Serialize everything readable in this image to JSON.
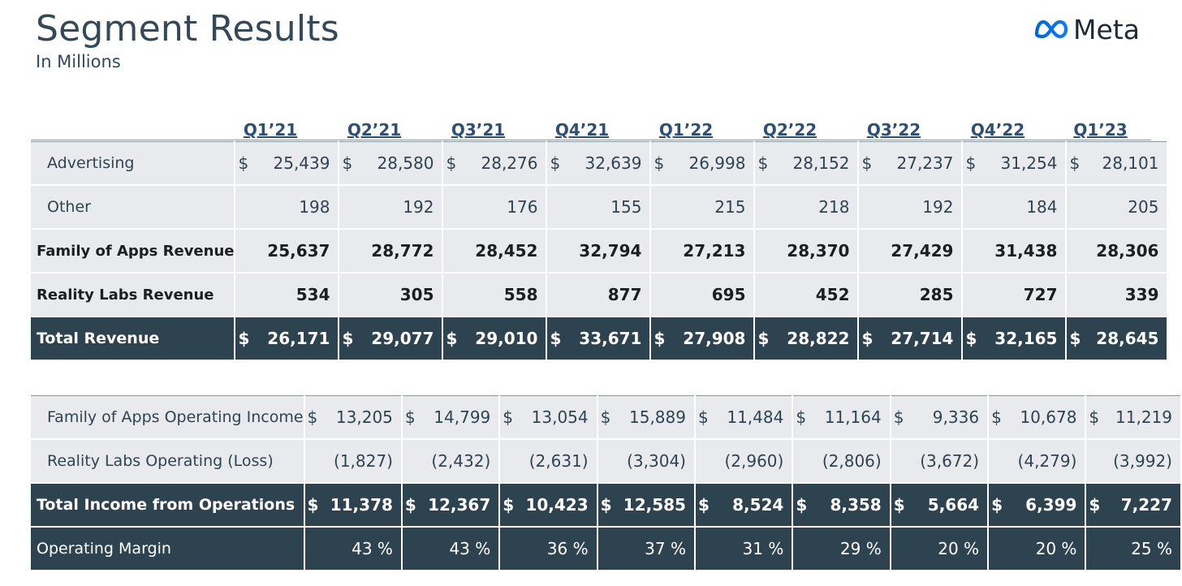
{
  "title": "Segment Results",
  "subtitle": "In Millions",
  "logo": {
    "text": "Meta",
    "icon": "meta-infinity-icon",
    "color": "#0866ff"
  },
  "quarters": [
    "Q1’21",
    "Q2’21",
    "Q3’21",
    "Q4’21",
    "Q1’22",
    "Q2’22",
    "Q3’22",
    "Q4’22",
    "Q1’23"
  ],
  "revenue_rows": [
    {
      "label": "Advertising",
      "currency": "$",
      "values": [
        "25,439",
        "28,580",
        "28,276",
        "32,639",
        "26,998",
        "28,152",
        "27,237",
        "31,254",
        "28,101"
      ]
    },
    {
      "label": "Other",
      "currency": "",
      "values": [
        "198",
        "192",
        "176",
        "155",
        "215",
        "218",
        "192",
        "184",
        "205"
      ]
    },
    {
      "label": "Family of Apps Revenue",
      "currency": "",
      "values": [
        "25,637",
        "28,772",
        "28,452",
        "32,794",
        "27,213",
        "28,370",
        "27,429",
        "31,438",
        "28,306"
      ]
    },
    {
      "label": "Reality Labs Revenue",
      "currency": "",
      "values": [
        "534",
        "305",
        "558",
        "877",
        "695",
        "452",
        "285",
        "727",
        "339"
      ]
    },
    {
      "label": "Total Revenue",
      "currency": "$",
      "values": [
        "26,171",
        "29,077",
        "29,010",
        "33,671",
        "27,908",
        "28,822",
        "27,714",
        "32,165",
        "28,645"
      ]
    }
  ],
  "income_rows": [
    {
      "label": "Family of Apps Operating Income",
      "currency": "$",
      "values": [
        "13,205",
        "14,799",
        "13,054",
        "15,889",
        "11,484",
        "11,164",
        "9,336",
        "10,678",
        "11,219"
      ]
    },
    {
      "label": "Reality Labs Operating (Loss)",
      "currency": "",
      "values": [
        "(1,827)",
        "(2,432)",
        "(2,631)",
        "(3,304)",
        "(2,960)",
        "(2,806)",
        "(3,672)",
        "(4,279)",
        "(3,992)"
      ]
    },
    {
      "label": "Total Income from Operations",
      "currency": "$",
      "values": [
        "11,378",
        "12,367",
        "10,423",
        "12,585",
        "8,524",
        "8,358",
        "5,664",
        "6,399",
        "7,227"
      ]
    },
    {
      "label": "Operating Margin",
      "currency": "",
      "values": [
        "43 %",
        "43 %",
        "36 %",
        "37 %",
        "31 %",
        "29 %",
        "20 %",
        "20 %",
        "25 %"
      ]
    }
  ],
  "colors": {
    "dark_row": "#2e4350",
    "light_row": "#e8eaed",
    "header_text": "#2f4f73"
  }
}
